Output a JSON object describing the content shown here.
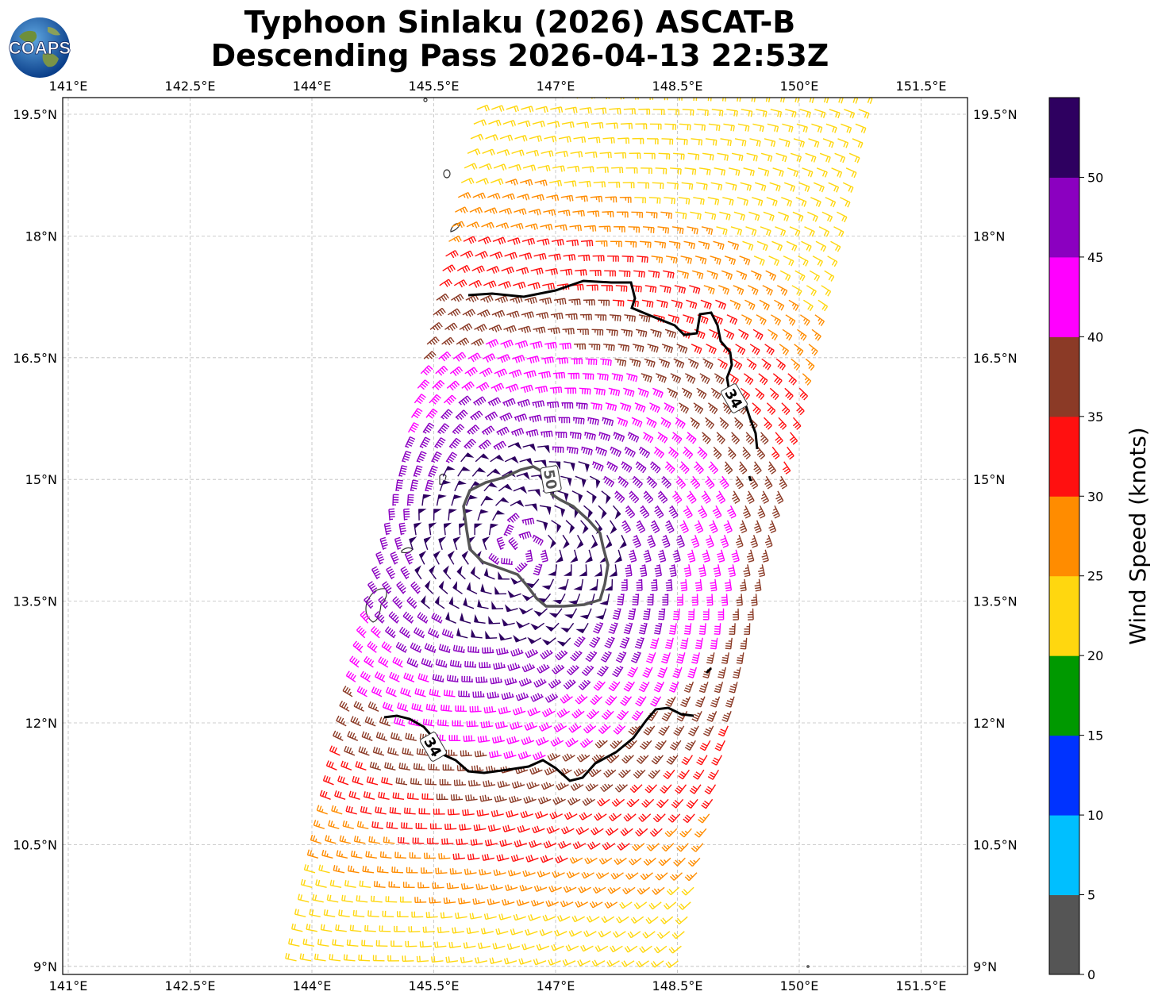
{
  "title_line1": "Typhoon Sinlaku (2026) ASCAT-B",
  "title_line2": "Descending Pass 2026-04-13 22:53Z",
  "logo_text": "COAPS",
  "lon_ticks": [
    "141°E",
    "142.5°E",
    "144°E",
    "145.5°E",
    "147°E",
    "148.5°E",
    "150°E",
    "151.5°E"
  ],
  "lat_ticks": [
    "19.5°N",
    "18°N",
    "16.5°N",
    "15°N",
    "13.5°N",
    "12°N",
    "10.5°N",
    "9°N"
  ],
  "colorbar": {
    "label": "Wind Speed (knots)",
    "ticks": [
      "0",
      "5",
      "10",
      "15",
      "20",
      "25",
      "30",
      "35",
      "40",
      "45",
      "50"
    ],
    "colors": [
      "#555555",
      "#00bfff",
      "#0033ff",
      "#009900",
      "#ffd70f",
      "#ff8c00",
      "#ff1010",
      "#8b3a26",
      "#ff00ff",
      "#8b00c0",
      "#2e0060"
    ]
  },
  "contours": [
    {
      "label": "34",
      "color": "#000000"
    },
    {
      "label": "34",
      "color": "#000000"
    },
    {
      "label": "50",
      "color": "#555555"
    }
  ],
  "storm_center": {
    "lon": 146.55,
    "lat": 14.15
  },
  "swath": {
    "lat_min": 9.0,
    "lat_max": 19.8
  }
}
